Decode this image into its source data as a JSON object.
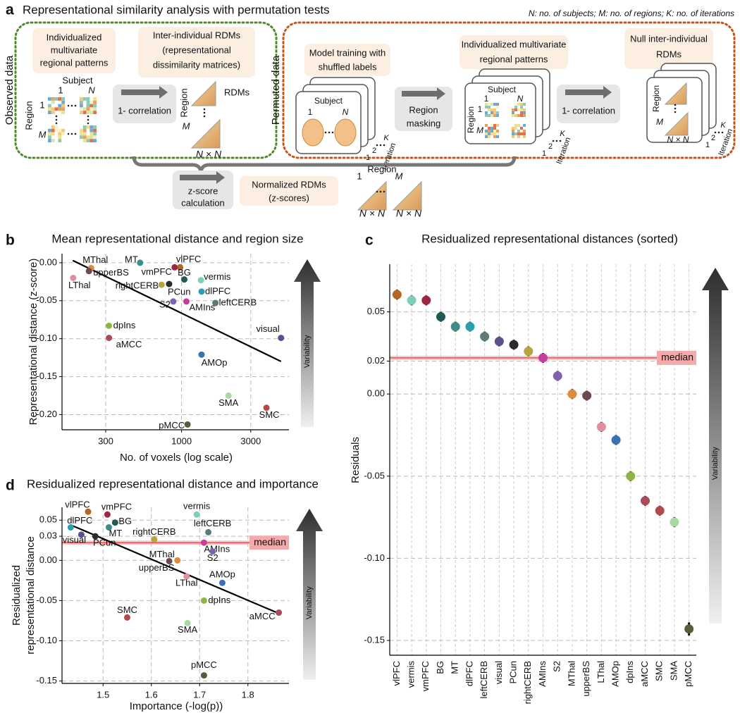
{
  "panel_a": {
    "letter": "a",
    "title": "Representational similarity analysis with permutation tests",
    "note": "N: no. of subjects; M: no. of regions; K: no. of iterations",
    "observed": {
      "label": "Observed data",
      "patterns": [
        "Individualized",
        "multivariate",
        "regional patterns"
      ],
      "subject": "Subject",
      "subject_first": "1",
      "subject_last": "N",
      "region": "Region",
      "region_first": "1",
      "region_last": "M",
      "step": "1- correlation",
      "rdms": [
        "Inter-individual RDMs",
        "(representational",
        "dissimilarity matrices)"
      ],
      "rdm_title": "RDMs",
      "rdm_region": "Region",
      "rdm_last": "M",
      "rdm_size": "N × N"
    },
    "permuted": {
      "label": "Permuted data",
      "training": [
        "Model training with",
        "shuffled labels"
      ],
      "subject": "Subject",
      "subject_first": "1",
      "subject_last": "N",
      "iteration": "Iteration",
      "iter_first": "1",
      "iter_second": "2",
      "iter_last": "K",
      "masking": [
        "Region",
        "masking"
      ],
      "patterns": [
        "Individualized multivariate",
        "regional patterns"
      ],
      "pattern_subject": "Subject",
      "pattern_first": "1",
      "pattern_last": "N",
      "pattern_region": "Region",
      "pattern_region_first": "1",
      "pattern_region_last": "M",
      "step": "1- correlation",
      "null_rdms": [
        "Null inter-individual",
        "RDMs"
      ],
      "null_region": "Region",
      "null_last": "M",
      "null_size": "N × N"
    },
    "normalized": {
      "step": [
        "z-score",
        "calculation"
      ],
      "rdms": [
        "Normalized RDMs",
        "(z-scores)"
      ],
      "region": "Region",
      "first": "1",
      "last": "M",
      "size": "N × N"
    }
  },
  "chart_data": [
    {
      "type": "scatter",
      "letter": "b",
      "title": "Mean representational distance and region size",
      "x_label": "No. of voxels (log scale)",
      "y_label": [
        "Representational distance (z-score)"
      ],
      "xscale": "log",
      "xlim": [
        150,
        5500
      ],
      "xticks": [
        300,
        1000,
        3000
      ],
      "ylim": [
        -0.22,
        0.012
      ],
      "yticks": [
        {
          "value": -0.2,
          "label": "-0.20"
        },
        -0.15,
        {
          "value": -0.1,
          "label": "-0.10"
        },
        -0.05,
        {
          "value": 0,
          "label": "0.00"
        }
      ],
      "grid": true,
      "arrow_label": "Variability",
      "fit": {
        "x": [
          178,
          4850
        ],
        "y": [
          0.003,
          -0.13
        ]
      },
      "series": [
        {
          "name": "vlPFC",
          "color": "#b8661f",
          "x": 978,
          "y": -0.006
        },
        {
          "name": "vermis",
          "color": "#7dcdb8",
          "x": 1360,
          "y": -0.023
        },
        {
          "name": "vmPFC",
          "color": "#9b2743",
          "x": 896,
          "y": -0.006
        },
        {
          "name": "BG",
          "color": "#1f5a55",
          "x": 1045,
          "y": -0.022
        },
        {
          "name": "MT",
          "color": "#3f8d8a",
          "x": 518,
          "y": 0.0
        },
        {
          "name": "dlPFC",
          "color": "#2aa0ae",
          "x": 1374,
          "y": -0.038
        },
        {
          "name": "leftCERB",
          "color": "#5e7b74",
          "x": 1712,
          "y": -0.053
        },
        {
          "name": "visual",
          "color": "#5b4f8e",
          "x": 4850,
          "y": -0.099
        },
        {
          "name": "PCun",
          "color": "#2b2b2b",
          "x": 821,
          "y": -0.028
        },
        {
          "name": "rightCERB",
          "color": "#b9a43c",
          "x": 728,
          "y": -0.029
        },
        {
          "name": "AMIns",
          "color": "#c73d9e",
          "x": 1080,
          "y": -0.051
        },
        {
          "name": "S2",
          "color": "#7d62b0",
          "x": 877,
          "y": -0.051
        },
        {
          "name": "MThal",
          "color": "#de8a3f",
          "x": 238,
          "y": -0.007
        },
        {
          "name": "upperBS",
          "color": "#6a4858",
          "x": 230,
          "y": -0.011
        },
        {
          "name": "LThal",
          "color": "#de909f",
          "x": 179,
          "y": -0.02
        },
        {
          "name": "AMOp",
          "color": "#3b70b3",
          "x": 1374,
          "y": -0.121
        },
        {
          "name": "dpIns",
          "color": "#8fb443",
          "x": 316,
          "y": -0.083
        },
        {
          "name": "aMCC",
          "color": "#aa4b5b",
          "x": 316,
          "y": -0.099
        },
        {
          "name": "SMC",
          "color": "#b34a4a",
          "x": 3850,
          "y": -0.191
        },
        {
          "name": "SMA",
          "color": "#a9d9a2",
          "x": 2107,
          "y": -0.175
        },
        {
          "name": "pMCC",
          "color": "#5b5a3a",
          "x": 1100,
          "y": -0.213
        }
      ]
    },
    {
      "type": "dot",
      "letter": "c",
      "title": "Residualized representational distances (sorted)",
      "y_label": [
        "Residuals"
      ],
      "categories": [
        "vlPFC",
        "vermis",
        "vmPFC",
        "BG",
        "MT",
        "dlPFC",
        "leftCERB",
        "visual",
        "PCun",
        "rightCERB",
        "AMIns",
        "S2",
        "MThal",
        "upperBS",
        "LThal",
        "AMOp",
        "dpIns",
        "aMCC",
        "SMC",
        "SMA",
        "pMCC"
      ],
      "values": [
        0.0605,
        0.057,
        0.057,
        0.047,
        0.041,
        0.041,
        0.035,
        0.032,
        0.03,
        0.026,
        0.022,
        0.011,
        0.0,
        -0.001,
        -0.02,
        -0.028,
        -0.05,
        -0.065,
        -0.071,
        -0.078,
        -0.143
      ],
      "errors": [
        0.003,
        0.003,
        0.003,
        0.003,
        0.003,
        0.003,
        0.003,
        0.003,
        0.003,
        0.003,
        0.003,
        0.003,
        0.003,
        0.003,
        0.003,
        0.003,
        0.003,
        0.003,
        0.003,
        0.003,
        0.004
      ],
      "colors": [
        "#b8661f",
        "#7dcdb8",
        "#9b2743",
        "#1f5a55",
        "#3f8d8a",
        "#2aa0ae",
        "#5e7b74",
        "#5b4f8e",
        "#2b2b2b",
        "#b9a43c",
        "#c73d9e",
        "#7d62b0",
        "#de8a3f",
        "#6a4858",
        "#de909f",
        "#3b70b3",
        "#8fb443",
        "#aa4b5b",
        "#b34a4a",
        "#a9d9a2",
        "#5b5a3a"
      ],
      "ylim": [
        -0.159,
        0.079
      ],
      "yticks": [
        -0.15,
        {
          "value": -0.1,
          "label": "-0.10"
        },
        -0.05,
        {
          "value": 0,
          "label": "0.00"
        },
        0.02,
        0.05
      ],
      "grid": true,
      "median": 0.022,
      "median_label": "median",
      "arrow_label": "Variability"
    },
    {
      "type": "scatter",
      "letter": "d",
      "title": "Residualized representational distance and importance",
      "x_label": "Importance (-log(p))",
      "y_label": [
        "Residualized",
        "representational distance"
      ],
      "xlim": [
        1.415,
        1.885
      ],
      "xticks": [
        1.5,
        1.6,
        1.7,
        1.8
      ],
      "ylim": [
        -0.153,
        0.066
      ],
      "yticks": [
        -0.15,
        {
          "value": -0.1,
          "label": "-0.10"
        },
        -0.05,
        {
          "value": 0,
          "label": "0.00"
        },
        0.03,
        0.05
      ],
      "grid": true,
      "median": 0.022,
      "median_label": "median",
      "arrow_label": "Variability",
      "fit": {
        "x": [
          1.433,
          1.864
        ],
        "y": [
          0.044,
          -0.066
        ]
      },
      "series": [
        {
          "name": "vlPFC",
          "color": "#b8661f",
          "x": 1.469,
          "y": 0.0605
        },
        {
          "name": "vermis",
          "color": "#7dcdb8",
          "x": 1.694,
          "y": 0.057
        },
        {
          "name": "vmPFC",
          "color": "#9b2743",
          "x": 1.509,
          "y": 0.057
        },
        {
          "name": "BG",
          "color": "#1f5a55",
          "x": 1.525,
          "y": 0.047
        },
        {
          "name": "MT",
          "color": "#3f8d8a",
          "x": 1.512,
          "y": 0.041
        },
        {
          "name": "dlPFC",
          "color": "#2aa0ae",
          "x": 1.433,
          "y": 0.041
        },
        {
          "name": "leftCERB",
          "color": "#5e7b74",
          "x": 1.718,
          "y": 0.035
        },
        {
          "name": "visual",
          "color": "#5b4f8e",
          "x": 1.455,
          "y": 0.032
        },
        {
          "name": "PCun",
          "color": "#2b2b2b",
          "x": 1.484,
          "y": 0.03
        },
        {
          "name": "rightCERB",
          "color": "#b9a43c",
          "x": 1.606,
          "y": 0.026
        },
        {
          "name": "AMIns",
          "color": "#c73d9e",
          "x": 1.709,
          "y": 0.022
        },
        {
          "name": "S2",
          "color": "#7d62b0",
          "x": 1.727,
          "y": 0.011
        },
        {
          "name": "MThal",
          "color": "#de8a3f",
          "x": 1.654,
          "y": 0.0
        },
        {
          "name": "upperBS",
          "color": "#6a4858",
          "x": 1.637,
          "y": -0.001
        },
        {
          "name": "LThal",
          "color": "#de909f",
          "x": 1.673,
          "y": -0.02
        },
        {
          "name": "AMOp",
          "color": "#3b70b3",
          "x": 1.747,
          "y": -0.028
        },
        {
          "name": "dpIns",
          "color": "#8fb443",
          "x": 1.709,
          "y": -0.05
        },
        {
          "name": "aMCC",
          "color": "#aa4b5b",
          "x": 1.864,
          "y": -0.065
        },
        {
          "name": "SMC",
          "color": "#b34a4a",
          "x": 1.55,
          "y": -0.071
        },
        {
          "name": "SMA",
          "color": "#a9d9a2",
          "x": 1.675,
          "y": -0.078
        },
        {
          "name": "pMCC",
          "color": "#5b5a3a",
          "x": 1.709,
          "y": -0.143
        }
      ]
    }
  ]
}
